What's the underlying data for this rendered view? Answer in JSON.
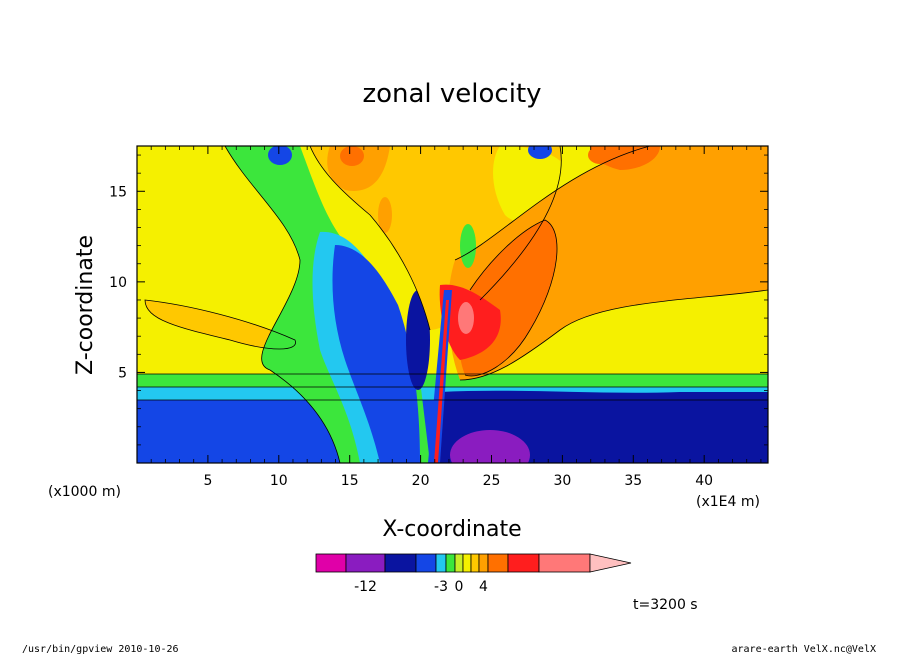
{
  "chart_data": {
    "type": "heatmap",
    "title": "zonal velocity",
    "xlabel": "X-coordinate",
    "ylabel": "Z-coordinate",
    "x_unit": "(x1E4 m)",
    "y_unit": "(x1000 m)",
    "xlim": [
      0,
      44.5
    ],
    "ylim": [
      0,
      17.5
    ],
    "x_ticks": [
      5,
      10,
      15,
      20,
      25,
      30,
      35,
      40
    ],
    "y_ticks": [
      5,
      10,
      15
    ],
    "annotation": "t=3200 s",
    "colorbar": {
      "colors": [
        "#e000a8",
        "#8a1cc0",
        "#0a14a0",
        "#1446e6",
        "#23c8f0",
        "#3ce63c",
        "#c8ee28",
        "#f5f000",
        "#ffc800",
        "#ffa000",
        "#ff7000",
        "#ff1e1e",
        "#ff7878",
        "#ffc0c0"
      ],
      "tick_labels": [
        {
          "label": "-12",
          "level": 1.5
        },
        {
          "label": "-3",
          "level": 4.5
        },
        {
          "label": "0",
          "level": 6.5
        },
        {
          "label": "4",
          "level": 9.5
        }
      ]
    }
  },
  "footer": {
    "left": "/usr/bin/gpview   2010-10-26",
    "right": "arare-earth_VelX.nc@VelX"
  }
}
